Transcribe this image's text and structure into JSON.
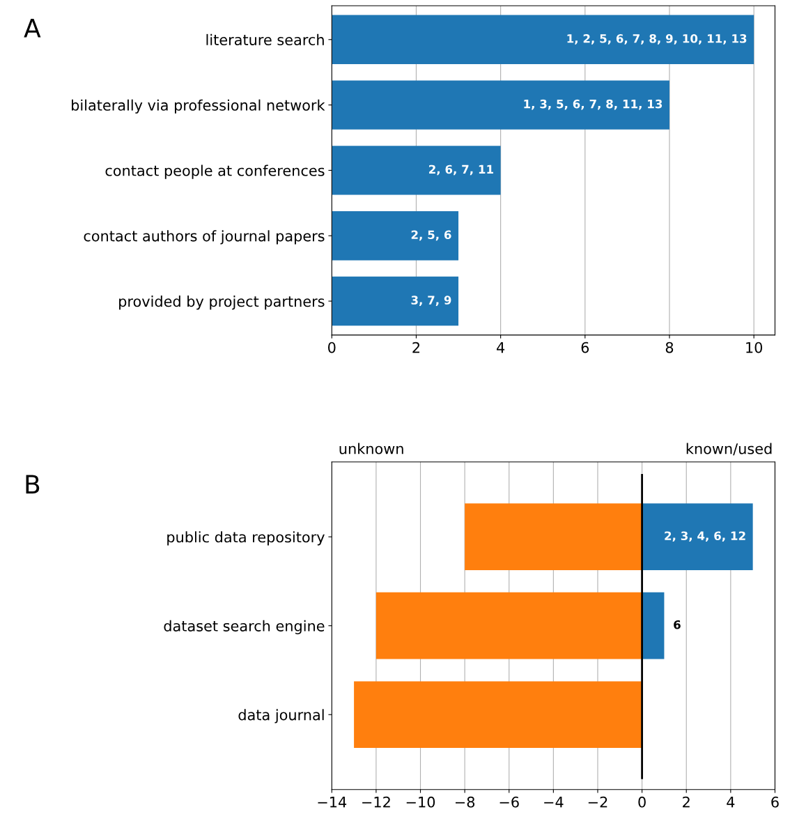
{
  "chart_data": [
    {
      "type": "bar",
      "orientation": "horizontal",
      "title": "A",
      "categories": [
        "literature search",
        "bilaterally via professional network",
        "contact people at conferences",
        "contact authors of journal papers",
        "provided by project partners"
      ],
      "series": [
        {
          "color": "#1f77b4",
          "values": [
            10,
            8,
            4,
            3,
            3
          ]
        }
      ],
      "annotations": [
        {
          "text": "1, 2, 5, 6, 7, 8, 9, 10, 11, 13",
          "x": 10,
          "y": "literature search"
        },
        {
          "text": "1, 3, 5, 6, 7, 8, 11, 13",
          "x": 8,
          "y": "bilaterally via professional network"
        },
        {
          "text": "2, 6, 7, 11",
          "x": 4,
          "y": "contact people at conferences"
        },
        {
          "text": "2, 5, 6",
          "x": 3,
          "y": "contact authors of journal papers"
        },
        {
          "text": "3, 7, 9",
          "x": 3,
          "y": "provided by project partners"
        }
      ],
      "xlim": [
        0,
        10.5
      ],
      "xticks": [
        0,
        2,
        4,
        6,
        8,
        10
      ],
      "grid": "x"
    },
    {
      "type": "bar",
      "orientation": "horizontal",
      "stacked": true,
      "title": "B",
      "categories": [
        "public data repository",
        "dataset search engine",
        "data journal"
      ],
      "series": [
        {
          "color": "#ff7f0e",
          "values": [
            -8,
            -12,
            -13
          ]
        },
        {
          "color": "#1f77b4",
          "values": [
            5,
            1,
            null
          ]
        }
      ],
      "annotations": [
        "unknown",
        "known/used",
        {
          "text": "2, 3, 4, 6, 12",
          "x": 5,
          "y": "public data repository"
        },
        {
          "text": "6",
          "x": 1,
          "y": "dataset search engine"
        }
      ],
      "ref_lines": [
        {
          "axis": "x",
          "value": 0,
          "color": "#000000"
        }
      ],
      "xlim": [
        -14,
        6
      ],
      "xticks": [
        {
          "value": -14,
          "label": "−14"
        },
        {
          "value": -12,
          "label": "−12"
        },
        {
          "value": -10,
          "label": "−10"
        },
        {
          "value": -8,
          "label": "−8"
        },
        {
          "value": -6,
          "label": "−6"
        },
        {
          "value": -4,
          "label": "−4"
        },
        {
          "value": -2,
          "label": "−2"
        },
        0,
        2,
        4,
        6
      ],
      "grid": "x"
    }
  ]
}
